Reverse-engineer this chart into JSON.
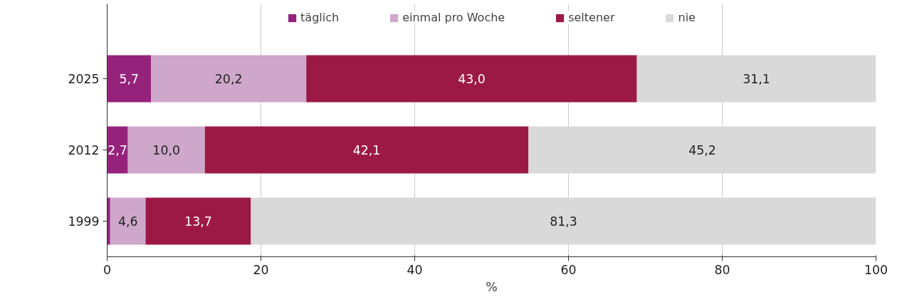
{
  "chart_data": {
    "type": "bar",
    "orientation": "horizontal",
    "stacked": true,
    "xlabel": "%",
    "categories": [
      "2025",
      "2012",
      "1999"
    ],
    "series": [
      {
        "name": "täglich",
        "color": "#95237c",
        "values": [
          5.7,
          2.7,
          0.4
        ],
        "value_labels": [
          "5,7",
          "2,7",
          null
        ]
      },
      {
        "name": "einmal pro Woche",
        "color": "#cfa7cb",
        "values": [
          20.2,
          10.0,
          4.6
        ],
        "value_labels": [
          "20,2",
          "10,0",
          "4,6"
        ]
      },
      {
        "name": "seltener",
        "color": "#9c1946",
        "values": [
          43.0,
          42.1,
          13.7
        ],
        "value_labels": [
          "43,0",
          "42,1",
          "13,7"
        ]
      },
      {
        "name": "nie",
        "color": "#d9d9d9",
        "values": [
          31.1,
          45.2,
          81.3
        ],
        "value_labels": [
          "31,1",
          "45,2",
          "81,3"
        ]
      }
    ],
    "xlim": [
      0,
      100
    ],
    "xticks": [
      0,
      20,
      40,
      60,
      80,
      100
    ],
    "grid": "x",
    "legend": "top"
  }
}
